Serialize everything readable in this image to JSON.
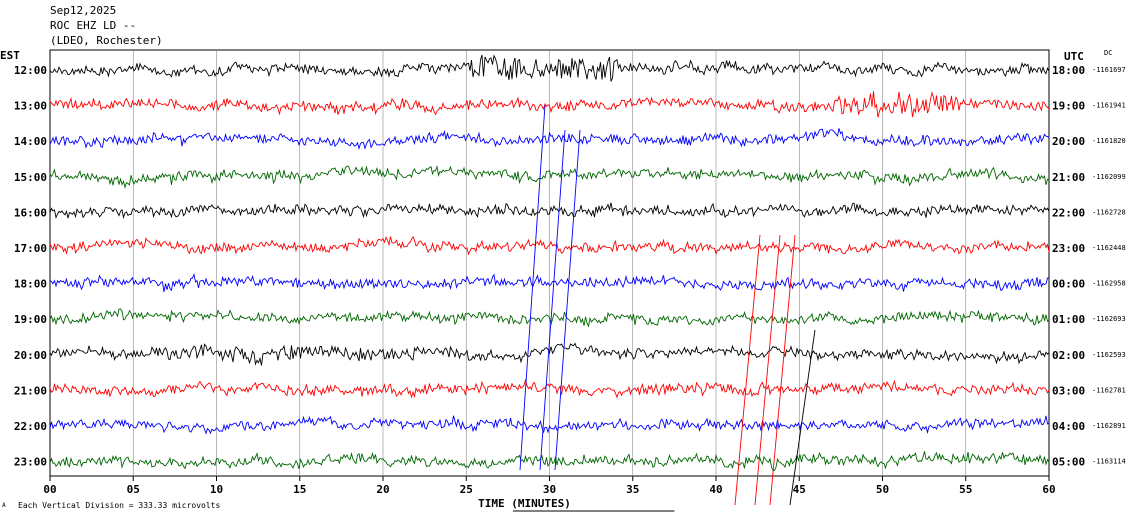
{
  "header": {
    "date": "Sep12,2025",
    "station": "ROC EHZ LD --",
    "network": "(LDEO, Rochester)"
  },
  "labels": {
    "left_tz": "EST",
    "right_tz": "UTC",
    "dc": "DC",
    "scale_note": "Each Vertical Division =  333.33 microvolts",
    "corner_mark": "A"
  },
  "chart_data": {
    "type": "line",
    "title": "",
    "xlabel": "TIME (MINUTES)",
    "x_ticks": [
      "00",
      "05",
      "10",
      "15",
      "20",
      "25",
      "30",
      "35",
      "40",
      "45",
      "50",
      "55",
      "60"
    ],
    "xlim": [
      0,
      60
    ],
    "colors": [
      "#000000",
      "#ff0000",
      "#0000ff",
      "#006600"
    ],
    "rows": [
      {
        "est": "12:00",
        "utc": "18:00",
        "dc": "-1161697",
        "color": "#000000"
      },
      {
        "est": "13:00",
        "utc": "19:00",
        "dc": "-1161941",
        "color": "#ff0000"
      },
      {
        "est": "14:00",
        "utc": "20:00",
        "dc": "-1161820",
        "color": "#0000ff"
      },
      {
        "est": "15:00",
        "utc": "21:00",
        "dc": "-1162099",
        "color": "#006600"
      },
      {
        "est": "16:00",
        "utc": "22:00",
        "dc": "-1162728",
        "color": "#000000"
      },
      {
        "est": "17:00",
        "utc": "23:00",
        "dc": "-1162448",
        "color": "#ff0000"
      },
      {
        "est": "18:00",
        "utc": "00:00",
        "dc": "-1162958",
        "color": "#0000ff"
      },
      {
        "est": "19:00",
        "utc": "01:00",
        "dc": "-1162693",
        "color": "#006600"
      },
      {
        "est": "20:00",
        "utc": "02:00",
        "dc": "-1162593",
        "color": "#000000"
      },
      {
        "est": "21:00",
        "utc": "03:00",
        "dc": "-1162781",
        "color": "#ff0000"
      },
      {
        "est": "22:00",
        "utc": "04:00",
        "dc": "-1162891",
        "color": "#0000ff"
      },
      {
        "est": "23:00",
        "utc": "05:00",
        "dc": "-1163114",
        "color": "#006600"
      }
    ]
  }
}
